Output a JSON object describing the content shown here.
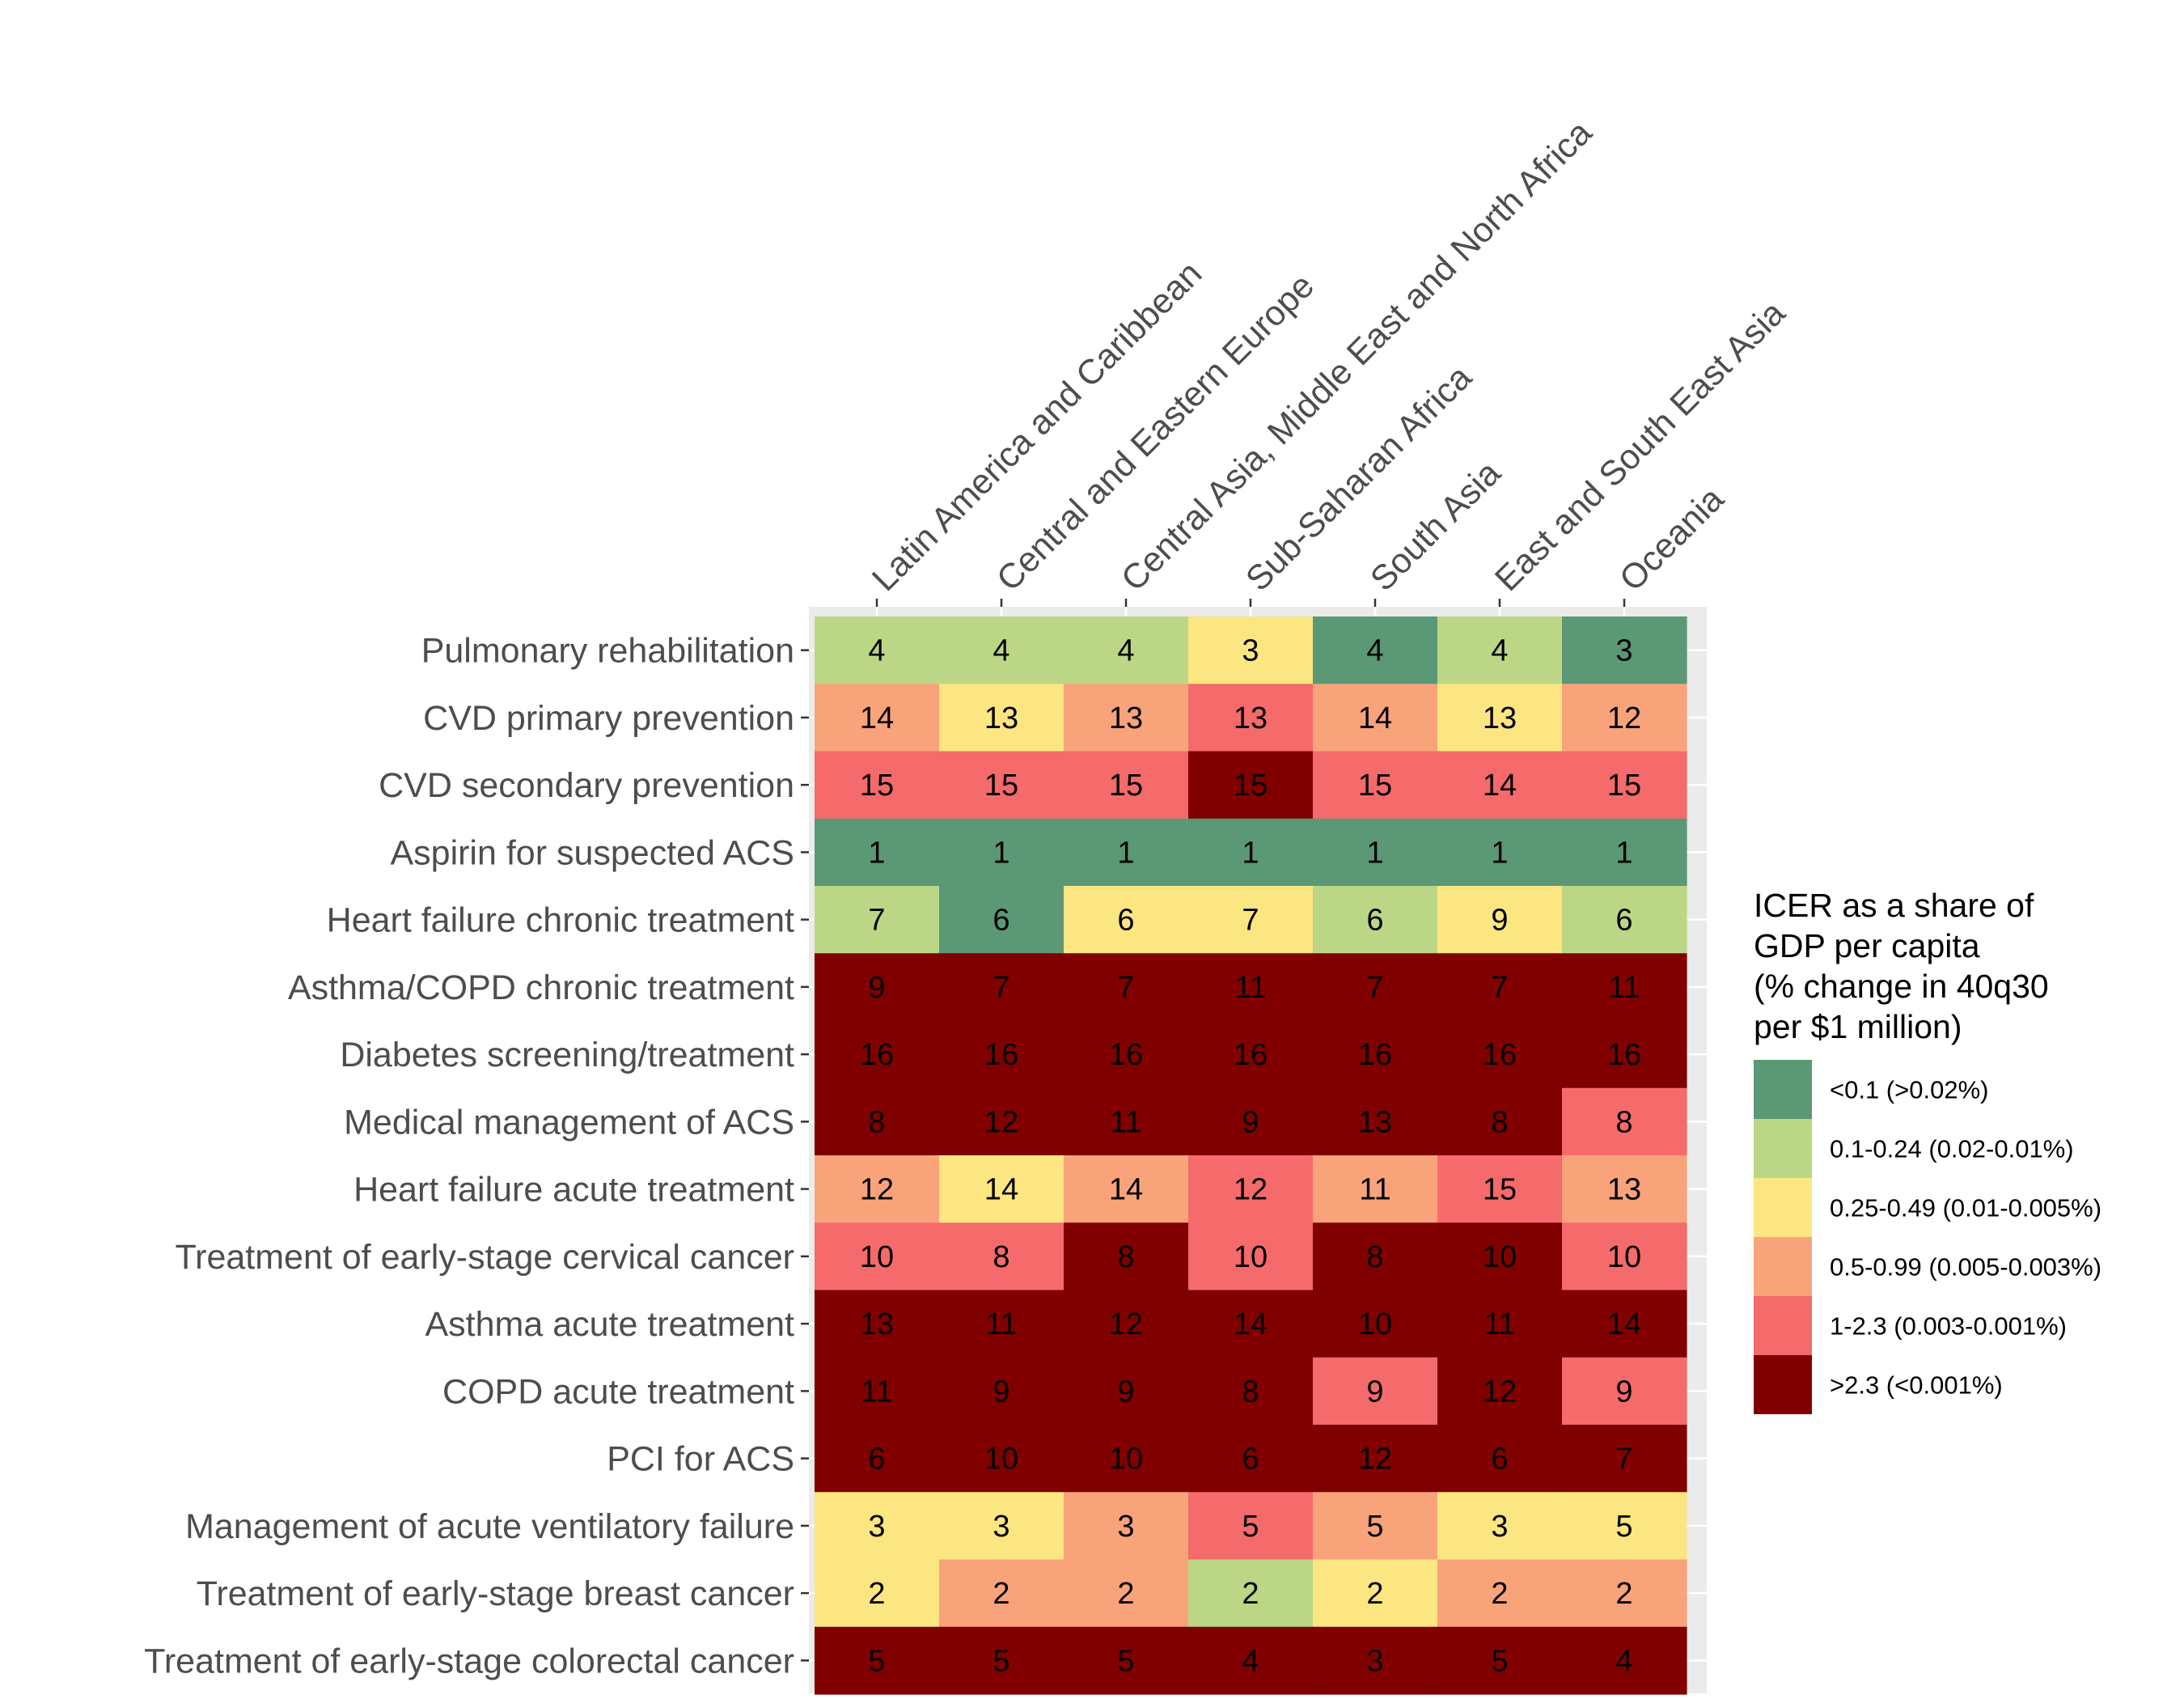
{
  "chart_data": {
    "type": "heatmap",
    "title": "",
    "xlabel": "",
    "ylabel": "",
    "columns": [
      "Latin America and Caribbean",
      "Central and Eastern Europe",
      "Central Asia, Middle East and North Africa",
      "Sub-Saharan Africa",
      "South Asia",
      "East and South East Asia",
      "Oceania"
    ],
    "rows": [
      "Pulmonary rehabilitation",
      "CVD primary prevention",
      "CVD secondary prevention",
      "Aspirin for suspected ACS",
      "Heart failure chronic treatment",
      "Asthma/COPD chronic treatment",
      "Diabetes screening/treatment",
      "Medical management of ACS",
      "Heart failure acute treatment",
      "Treatment of early-stage cervical cancer",
      "Asthma acute treatment",
      "COPD acute treatment",
      "PCI for ACS",
      "Management of acute ventilatory failure",
      "Treatment of early-stage breast cancer",
      "Treatment of early-stage colorectal cancer"
    ],
    "ranks": [
      [
        4,
        4,
        4,
        3,
        4,
        4,
        3
      ],
      [
        14,
        13,
        13,
        13,
        14,
        13,
        12
      ],
      [
        15,
        15,
        15,
        15,
        15,
        14,
        15
      ],
      [
        1,
        1,
        1,
        1,
        1,
        1,
        1
      ],
      [
        7,
        6,
        6,
        7,
        6,
        9,
        6
      ],
      [
        9,
        7,
        7,
        11,
        7,
        7,
        11
      ],
      [
        16,
        16,
        16,
        16,
        16,
        16,
        16
      ],
      [
        8,
        12,
        11,
        9,
        13,
        8,
        8
      ],
      [
        12,
        14,
        14,
        12,
        11,
        15,
        13
      ],
      [
        10,
        8,
        8,
        10,
        8,
        10,
        10
      ],
      [
        13,
        11,
        12,
        14,
        10,
        11,
        14
      ],
      [
        11,
        9,
        9,
        8,
        9,
        12,
        9
      ],
      [
        6,
        10,
        10,
        6,
        12,
        6,
        7
      ],
      [
        3,
        3,
        3,
        5,
        5,
        3,
        5
      ],
      [
        2,
        2,
        2,
        2,
        2,
        2,
        2
      ],
      [
        5,
        5,
        5,
        4,
        3,
        5,
        4
      ]
    ],
    "categories": [
      [
        1,
        1,
        1,
        2,
        0,
        1,
        0
      ],
      [
        3,
        2,
        3,
        4,
        3,
        2,
        3
      ],
      [
        4,
        4,
        4,
        5,
        4,
        4,
        4
      ],
      [
        0,
        0,
        0,
        0,
        0,
        0,
        0
      ],
      [
        1,
        0,
        2,
        2,
        1,
        2,
        1
      ],
      [
        5,
        5,
        5,
        5,
        5,
        5,
        5
      ],
      [
        5,
        5,
        5,
        5,
        5,
        5,
        5
      ],
      [
        5,
        5,
        5,
        5,
        5,
        5,
        4
      ],
      [
        3,
        2,
        3,
        4,
        3,
        4,
        3
      ],
      [
        4,
        4,
        5,
        4,
        5,
        5,
        4
      ],
      [
        5,
        5,
        5,
        5,
        5,
        5,
        5
      ],
      [
        5,
        5,
        5,
        5,
        4,
        5,
        4
      ],
      [
        5,
        5,
        5,
        5,
        5,
        5,
        5
      ],
      [
        2,
        2,
        3,
        4,
        3,
        2,
        2
      ],
      [
        2,
        3,
        3,
        1,
        2,
        3,
        3
      ],
      [
        5,
        5,
        5,
        5,
        5,
        5,
        5
      ]
    ],
    "legend": {
      "title": [
        "ICER as a share of",
        "GDP per capita",
        "(% change in 40q30",
        "per $1 million)"
      ],
      "placement": "right",
      "items": [
        {
          "label": "<0.1 (>0.02%)",
          "color": "#5b9875"
        },
        {
          "label": "0.1-0.24 (0.02-0.01%)",
          "color": "#bbd785"
        },
        {
          "label": "0.25-0.49 (0.01-0.005%)",
          "color": "#fbe681"
        },
        {
          "label": "0.5-0.99 (0.005-0.003%)",
          "color": "#f9a37b"
        },
        {
          "label": "1-2.3 (0.003-0.001%)",
          "color": "#f56a6a"
        },
        {
          "label": ">2.3 (<0.001%)",
          "color": "#800000"
        }
      ]
    },
    "panel_background": "#ebebeb",
    "grid": true
  }
}
